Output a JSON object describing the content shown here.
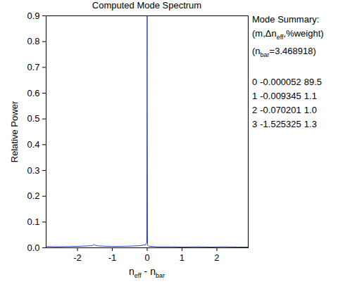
{
  "chart_data": {
    "type": "line",
    "title": "Computed Mode Spectrum",
    "x_label": [
      {
        "t": "n"
      },
      {
        "sub": "eff"
      },
      {
        "t": " - n"
      },
      {
        "sub": "bar"
      }
    ],
    "y_label": "Relative Power",
    "x": [
      -2.9,
      -2.6,
      -2.2,
      -1.9,
      -1.6,
      -1.55,
      -1.525,
      -1.5,
      -1.4,
      -1.0,
      -0.6,
      -0.2,
      -0.07,
      -0.05,
      -0.01,
      -0.0001,
      0,
      0.01,
      0.05,
      0.3,
      0.7,
      1.0,
      1.4,
      1.8,
      2.2,
      2.6,
      2.9
    ],
    "series": [
      {
        "name": "Relative Power",
        "color": "#2a3fbf",
        "values": [
          0.005,
          0.004,
          0.005,
          0.006,
          0.008,
          0.01,
          0.013,
          0.01,
          0.007,
          0.005,
          0.006,
          0.008,
          0.012,
          0.01,
          0.02,
          0.9,
          0.66,
          0.01,
          0.006,
          0.004,
          0.004,
          0.003,
          0.004,
          0.003,
          0.004,
          0.003,
          0.003
        ]
      }
    ],
    "xlim": [
      -2.9,
      2.9
    ],
    "xticks": [
      -2,
      -1,
      0,
      1,
      2
    ],
    "ylim": [
      0,
      0.9
    ],
    "yticks": [
      {
        "value": 0,
        "label": "0.0"
      },
      0.1,
      0.2,
      0.3,
      0.4,
      0.5,
      0.6,
      0.7,
      0.8,
      0.9
    ],
    "grid": false,
    "mode_summary": {
      "heading": "Mode Summary:",
      "columns": [
        {
          "t": "(m,Δn"
        },
        {
          "sub": "eff"
        },
        {
          "t": ",%weight)"
        }
      ],
      "n_bar": [
        {
          "t": "(n"
        },
        {
          "sub": "bar"
        },
        {
          "t": "=3.468918)"
        }
      ],
      "rows": [
        [
          "0",
          "-0.000052",
          "89.5"
        ],
        [
          "1",
          "-0.009345",
          "1.1"
        ],
        [
          "2",
          "-0.070201",
          "1.0"
        ],
        [
          "3",
          "-1.525325",
          "1.3"
        ]
      ]
    }
  }
}
